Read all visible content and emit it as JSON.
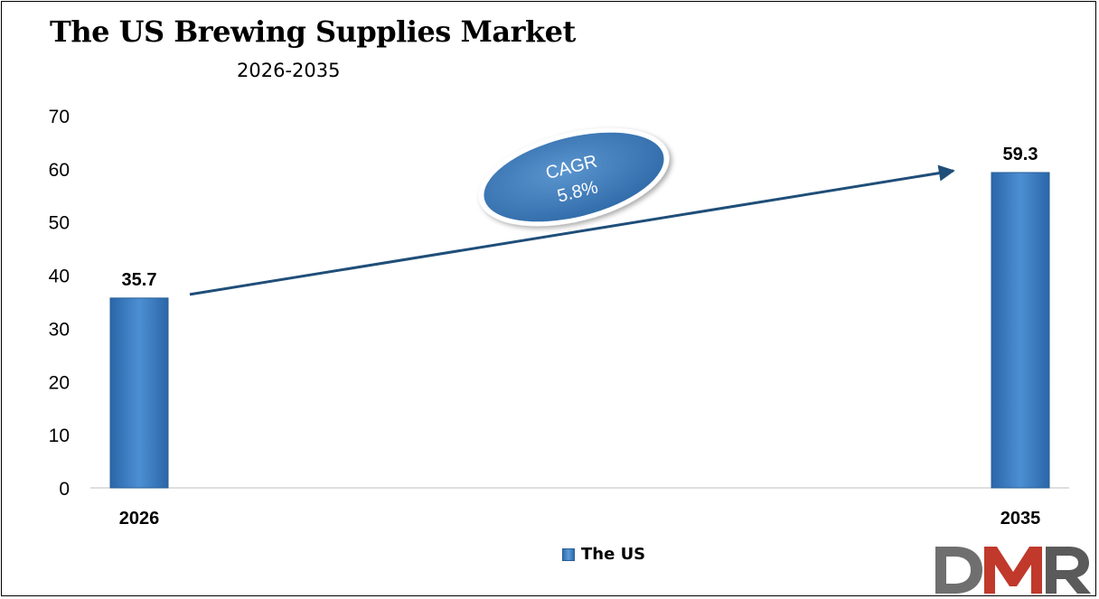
{
  "chart_data": {
    "type": "bar",
    "title": "The US Brewing Supplies Market",
    "subtitle": "2026-2035",
    "categories": [
      "2026",
      "2035"
    ],
    "series": [
      {
        "name": "The US",
        "values": [
          35.7,
          59.3
        ]
      }
    ],
    "data_labels": [
      "35.7",
      "59.3"
    ],
    "yticks": [
      "0",
      "10",
      "20",
      "30",
      "40",
      "50",
      "60",
      "70"
    ],
    "ylim": [
      0,
      70
    ],
    "xlabel": "",
    "ylabel": "",
    "grid": false,
    "legend": "bottom-center",
    "annotation": {
      "line1": "CAGR",
      "line2": "5.8%"
    },
    "bar_color": "#3a7cc4",
    "arrow_color": "#1f4e79"
  },
  "logo": {
    "text": "DMR",
    "colors": [
      "#666666",
      "#c0392b",
      "#555555"
    ]
  }
}
